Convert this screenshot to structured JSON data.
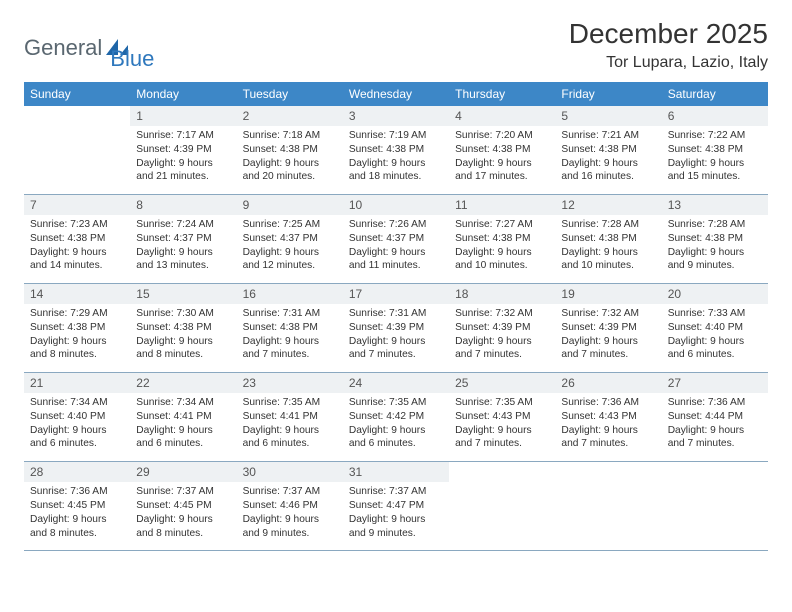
{
  "logo": {
    "word1": "General",
    "word2": "Blue"
  },
  "title": "December 2025",
  "location": "Tor Lupara, Lazio, Italy",
  "colors": {
    "header_bg": "#3d87c7",
    "header_text": "#ffffff",
    "daynum_bg": "#eef1f3",
    "row_border": "#8aa8c0",
    "logo_gray": "#5a6770",
    "logo_blue": "#2f78bd",
    "logo_shape": "#1f66a8"
  },
  "dow": [
    "Sunday",
    "Monday",
    "Tuesday",
    "Wednesday",
    "Thursday",
    "Friday",
    "Saturday"
  ],
  "weeks": [
    [
      {
        "n": "",
        "sr": "",
        "ss": "",
        "dl": ""
      },
      {
        "n": "1",
        "sr": "Sunrise: 7:17 AM",
        "ss": "Sunset: 4:39 PM",
        "dl": "Daylight: 9 hours and 21 minutes."
      },
      {
        "n": "2",
        "sr": "Sunrise: 7:18 AM",
        "ss": "Sunset: 4:38 PM",
        "dl": "Daylight: 9 hours and 20 minutes."
      },
      {
        "n": "3",
        "sr": "Sunrise: 7:19 AM",
        "ss": "Sunset: 4:38 PM",
        "dl": "Daylight: 9 hours and 18 minutes."
      },
      {
        "n": "4",
        "sr": "Sunrise: 7:20 AM",
        "ss": "Sunset: 4:38 PM",
        "dl": "Daylight: 9 hours and 17 minutes."
      },
      {
        "n": "5",
        "sr": "Sunrise: 7:21 AM",
        "ss": "Sunset: 4:38 PM",
        "dl": "Daylight: 9 hours and 16 minutes."
      },
      {
        "n": "6",
        "sr": "Sunrise: 7:22 AM",
        "ss": "Sunset: 4:38 PM",
        "dl": "Daylight: 9 hours and 15 minutes."
      }
    ],
    [
      {
        "n": "7",
        "sr": "Sunrise: 7:23 AM",
        "ss": "Sunset: 4:38 PM",
        "dl": "Daylight: 9 hours and 14 minutes."
      },
      {
        "n": "8",
        "sr": "Sunrise: 7:24 AM",
        "ss": "Sunset: 4:37 PM",
        "dl": "Daylight: 9 hours and 13 minutes."
      },
      {
        "n": "9",
        "sr": "Sunrise: 7:25 AM",
        "ss": "Sunset: 4:37 PM",
        "dl": "Daylight: 9 hours and 12 minutes."
      },
      {
        "n": "10",
        "sr": "Sunrise: 7:26 AM",
        "ss": "Sunset: 4:37 PM",
        "dl": "Daylight: 9 hours and 11 minutes."
      },
      {
        "n": "11",
        "sr": "Sunrise: 7:27 AM",
        "ss": "Sunset: 4:38 PM",
        "dl": "Daylight: 9 hours and 10 minutes."
      },
      {
        "n": "12",
        "sr": "Sunrise: 7:28 AM",
        "ss": "Sunset: 4:38 PM",
        "dl": "Daylight: 9 hours and 10 minutes."
      },
      {
        "n": "13",
        "sr": "Sunrise: 7:28 AM",
        "ss": "Sunset: 4:38 PM",
        "dl": "Daylight: 9 hours and 9 minutes."
      }
    ],
    [
      {
        "n": "14",
        "sr": "Sunrise: 7:29 AM",
        "ss": "Sunset: 4:38 PM",
        "dl": "Daylight: 9 hours and 8 minutes."
      },
      {
        "n": "15",
        "sr": "Sunrise: 7:30 AM",
        "ss": "Sunset: 4:38 PM",
        "dl": "Daylight: 9 hours and 8 minutes."
      },
      {
        "n": "16",
        "sr": "Sunrise: 7:31 AM",
        "ss": "Sunset: 4:38 PM",
        "dl": "Daylight: 9 hours and 7 minutes."
      },
      {
        "n": "17",
        "sr": "Sunrise: 7:31 AM",
        "ss": "Sunset: 4:39 PM",
        "dl": "Daylight: 9 hours and 7 minutes."
      },
      {
        "n": "18",
        "sr": "Sunrise: 7:32 AM",
        "ss": "Sunset: 4:39 PM",
        "dl": "Daylight: 9 hours and 7 minutes."
      },
      {
        "n": "19",
        "sr": "Sunrise: 7:32 AM",
        "ss": "Sunset: 4:39 PM",
        "dl": "Daylight: 9 hours and 7 minutes."
      },
      {
        "n": "20",
        "sr": "Sunrise: 7:33 AM",
        "ss": "Sunset: 4:40 PM",
        "dl": "Daylight: 9 hours and 6 minutes."
      }
    ],
    [
      {
        "n": "21",
        "sr": "Sunrise: 7:34 AM",
        "ss": "Sunset: 4:40 PM",
        "dl": "Daylight: 9 hours and 6 minutes."
      },
      {
        "n": "22",
        "sr": "Sunrise: 7:34 AM",
        "ss": "Sunset: 4:41 PM",
        "dl": "Daylight: 9 hours and 6 minutes."
      },
      {
        "n": "23",
        "sr": "Sunrise: 7:35 AM",
        "ss": "Sunset: 4:41 PM",
        "dl": "Daylight: 9 hours and 6 minutes."
      },
      {
        "n": "24",
        "sr": "Sunrise: 7:35 AM",
        "ss": "Sunset: 4:42 PM",
        "dl": "Daylight: 9 hours and 6 minutes."
      },
      {
        "n": "25",
        "sr": "Sunrise: 7:35 AM",
        "ss": "Sunset: 4:43 PM",
        "dl": "Daylight: 9 hours and 7 minutes."
      },
      {
        "n": "26",
        "sr": "Sunrise: 7:36 AM",
        "ss": "Sunset: 4:43 PM",
        "dl": "Daylight: 9 hours and 7 minutes."
      },
      {
        "n": "27",
        "sr": "Sunrise: 7:36 AM",
        "ss": "Sunset: 4:44 PM",
        "dl": "Daylight: 9 hours and 7 minutes."
      }
    ],
    [
      {
        "n": "28",
        "sr": "Sunrise: 7:36 AM",
        "ss": "Sunset: 4:45 PM",
        "dl": "Daylight: 9 hours and 8 minutes."
      },
      {
        "n": "29",
        "sr": "Sunrise: 7:37 AM",
        "ss": "Sunset: 4:45 PM",
        "dl": "Daylight: 9 hours and 8 minutes."
      },
      {
        "n": "30",
        "sr": "Sunrise: 7:37 AM",
        "ss": "Sunset: 4:46 PM",
        "dl": "Daylight: 9 hours and 9 minutes."
      },
      {
        "n": "31",
        "sr": "Sunrise: 7:37 AM",
        "ss": "Sunset: 4:47 PM",
        "dl": "Daylight: 9 hours and 9 minutes."
      },
      {
        "n": "",
        "sr": "",
        "ss": "",
        "dl": ""
      },
      {
        "n": "",
        "sr": "",
        "ss": "",
        "dl": ""
      },
      {
        "n": "",
        "sr": "",
        "ss": "",
        "dl": ""
      }
    ]
  ]
}
